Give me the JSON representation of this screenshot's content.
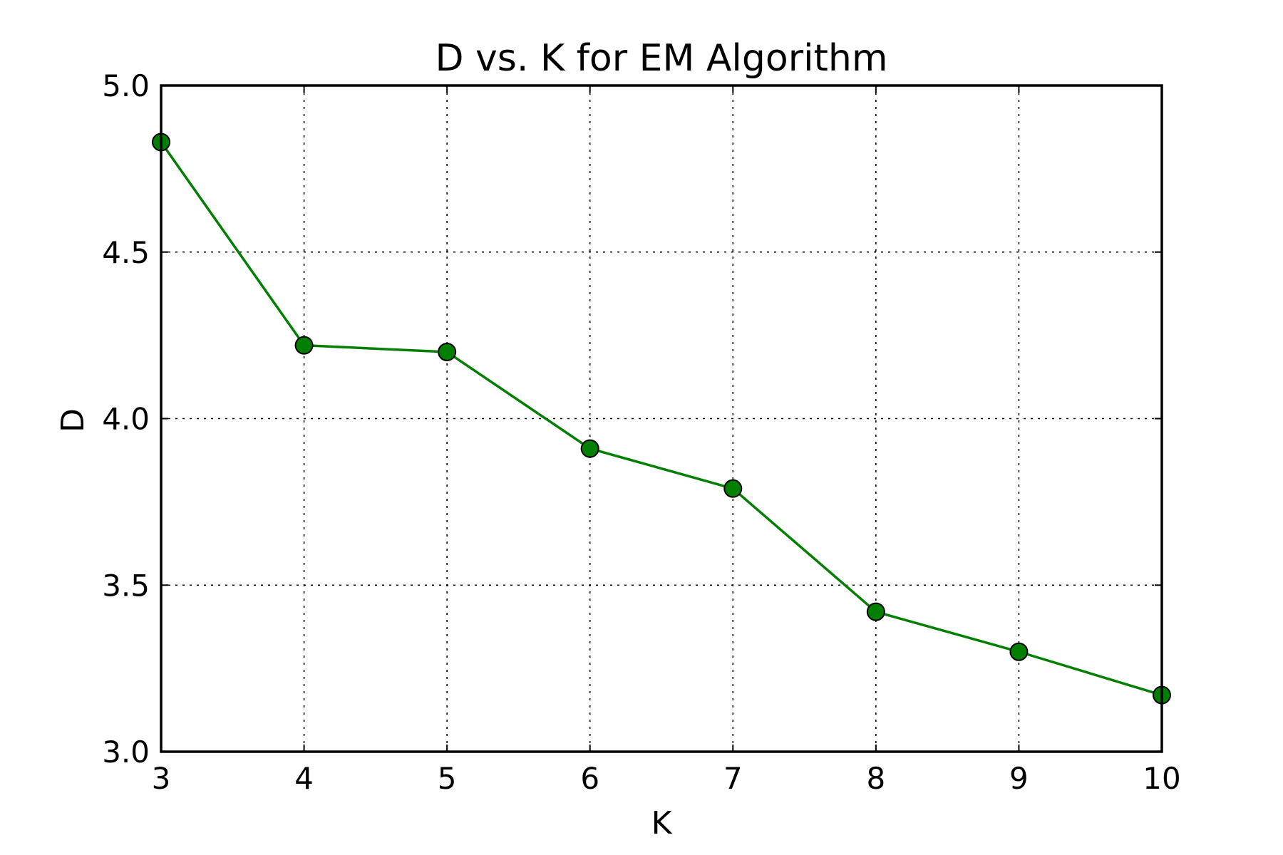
{
  "chart_data": {
    "type": "line",
    "title": "D vs. K for EM Algorithm",
    "xlabel": "K",
    "ylabel": "D",
    "xlim": [
      3,
      10
    ],
    "ylim": [
      3.0,
      5.0
    ],
    "xticks": [
      "3",
      "4",
      "5",
      "6",
      "7",
      "8",
      "9",
      "10"
    ],
    "yticks": [
      "3.0",
      "3.5",
      "4.0",
      "4.5",
      "5.0"
    ],
    "grid": true,
    "series": [
      {
        "color": "#007f00",
        "marker": "circle",
        "x": [
          3,
          4,
          5,
          6,
          7,
          8,
          9,
          10
        ],
        "y": [
          4.83,
          4.22,
          4.2,
          3.91,
          3.79,
          3.42,
          3.3,
          3.17
        ]
      }
    ]
  }
}
